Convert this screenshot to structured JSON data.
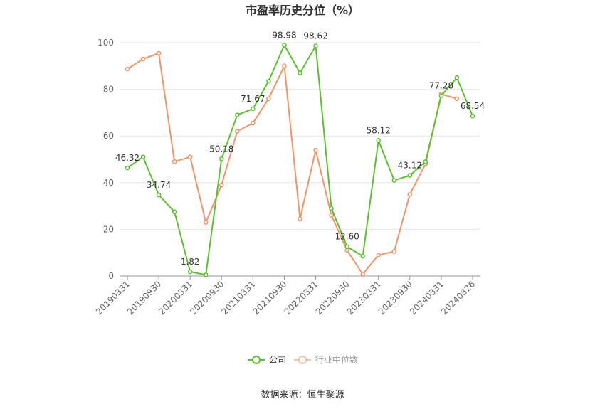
{
  "chart_data": {
    "type": "line",
    "title": "市盈率历史分位（%）",
    "x": [
      "20190331",
      "20190630",
      "20190930",
      "20191231",
      "20200331",
      "20200630",
      "20200930",
      "20201231",
      "20210331",
      "20210630",
      "20210930",
      "20211231",
      "20220331",
      "20220630",
      "20220930",
      "20221231",
      "20230331",
      "20230630",
      "20230930",
      "20231231",
      "20240331",
      "20240630",
      "20240826"
    ],
    "x_tick_labels": [
      "20190331",
      "20190930",
      "20200331",
      "20200930",
      "20210331",
      "20210930",
      "20220331",
      "20220930",
      "20230331",
      "20230930",
      "20240331",
      "20240826"
    ],
    "y_ticks": [
      "0",
      "20",
      "40",
      "60",
      "80",
      "100"
    ],
    "ylim": [
      0,
      100
    ],
    "series": [
      {
        "name": "公司",
        "color": "#5cc130",
        "values": [
          46.32,
          51.0,
          34.74,
          27.5,
          1.82,
          0.5,
          50.18,
          69.0,
          71.67,
          83.5,
          98.98,
          87.0,
          98.62,
          29.0,
          12.6,
          8.5,
          58.12,
          41.0,
          43.12,
          49.0,
          77.28,
          85.0,
          68.54
        ],
        "labels": [
          "46.32",
          "",
          "34.74",
          "",
          "1.82",
          "",
          "50.18",
          "",
          "71.67",
          "",
          "98.98",
          "",
          "98.62",
          "",
          "12.60",
          "",
          "58.12",
          "",
          "43.12",
          "",
          "77.28",
          "",
          "68.54"
        ]
      },
      {
        "name": "行业中位数",
        "color": "#f39366",
        "values": [
          88.7,
          93.0,
          95.5,
          49.0,
          51.0,
          23.0,
          39.0,
          62.0,
          65.5,
          76.0,
          90.0,
          24.5,
          54.0,
          26.0,
          11.0,
          0.8,
          9.0,
          10.5,
          35.0,
          48.0,
          78.0,
          76.0,
          null
        ]
      }
    ],
    "grid": true,
    "legend_position": "bottom"
  },
  "legend": {
    "items": [
      "公司",
      "行业中位数"
    ]
  },
  "source": "数据来源：恒生聚源"
}
